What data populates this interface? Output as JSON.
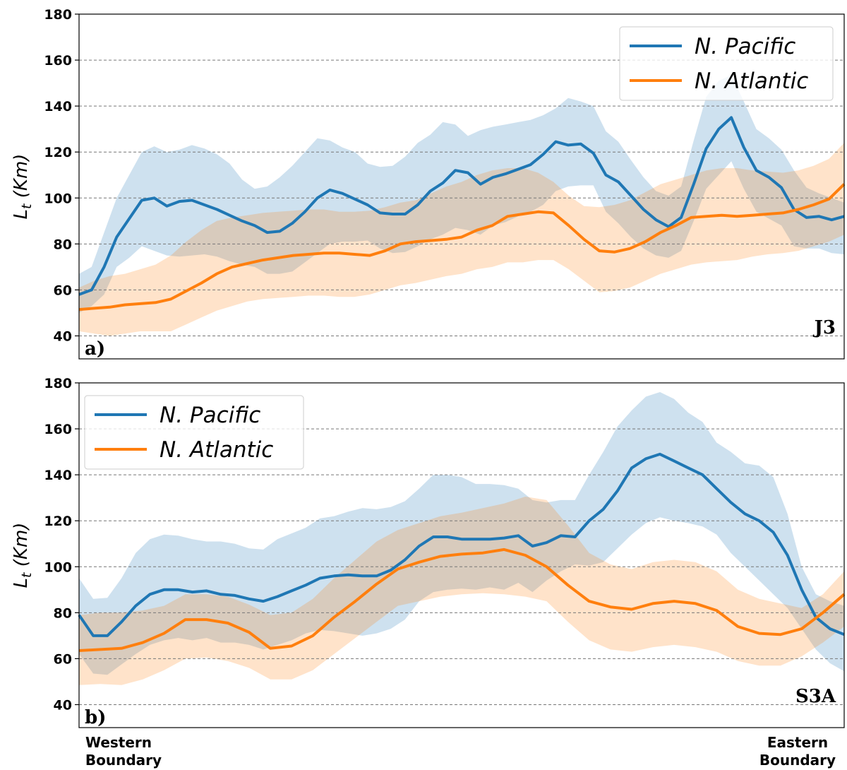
{
  "chart_data": [
    {
      "type": "line",
      "panel_label": "a)",
      "mission": "J3",
      "ylabel_main": "L",
      "ylabel_sub": "t",
      "ylabel_unit": " (Km)",
      "ylim": [
        30,
        180
      ],
      "yticks": [
        40,
        60,
        80,
        100,
        120,
        140,
        160,
        180
      ],
      "grid": "horizontal dashed",
      "legend_position": "top-right",
      "x_index_range": [
        0,
        47
      ],
      "series": [
        {
          "name": "N. Pacific",
          "color": "#1f77b4",
          "y": [
            58,
            60,
            70,
            83,
            91,
            99,
            100,
            96.5,
            98.5,
            99,
            97,
            95,
            92.5,
            90,
            88,
            85,
            85.5,
            89,
            94,
            100,
            103.5,
            102,
            99.5,
            97,
            93.5,
            93,
            93,
            97,
            103,
            106.5,
            112,
            111,
            106,
            109,
            110.5,
            112.5,
            114.5,
            119,
            124.5,
            123,
            123.5,
            119.5,
            110,
            107,
            101,
            95,
            90.5,
            87.5,
            91.5,
            106,
            121.5,
            130,
            135,
            122,
            112,
            109,
            104.5,
            95,
            91.5,
            92,
            90.5,
            92
          ],
          "upper": [
            67,
            70,
            85,
            100,
            110,
            120,
            122.5,
            120,
            121,
            123,
            121.5,
            119,
            115,
            108,
            104,
            105,
            109,
            114,
            120,
            126,
            125,
            122,
            120,
            115,
            113.5,
            114,
            118,
            124,
            127.5,
            133,
            132,
            127,
            129.5,
            131,
            132,
            133,
            134,
            136,
            139,
            143.5,
            142,
            140,
            129,
            124.5,
            116.5,
            109,
            103,
            101,
            105,
            125,
            144,
            151,
            153.5,
            142,
            130,
            126,
            121,
            112,
            104.5,
            102,
            100,
            98
          ],
          "lower": [
            50,
            53,
            58,
            70,
            74,
            79,
            77,
            75,
            74.5,
            75,
            75.5,
            74.5,
            72.5,
            71,
            70,
            67,
            67,
            68,
            72,
            76,
            80,
            81,
            81,
            81.5,
            78,
            76,
            76.5,
            79,
            82,
            84,
            87,
            86,
            84,
            88,
            89.5,
            92,
            94,
            97,
            103,
            105,
            105.5,
            105.5,
            94,
            89,
            83,
            78,
            75,
            74,
            77,
            90,
            104,
            110,
            116,
            104,
            94,
            91,
            88,
            79,
            78,
            78,
            76,
            75.5
          ]
        },
        {
          "name": "N. Atlantic",
          "color": "#ff7f0e",
          "y": [
            51.5,
            52,
            52.5,
            53.5,
            54,
            54.5,
            56,
            59.5,
            63,
            67,
            70,
            71.5,
            73,
            74,
            75,
            75.5,
            76,
            76,
            75.5,
            75,
            77,
            80,
            81,
            81.5,
            82,
            83,
            86,
            88,
            92,
            93,
            94,
            93.5,
            88,
            82,
            77,
            76.5,
            78,
            81,
            85,
            88,
            91.5,
            92,
            92.5,
            92,
            92.5,
            93,
            93.5,
            95,
            97,
            99.5,
            106
          ],
          "upper": [
            61,
            64,
            66,
            67,
            69,
            71,
            75,
            81,
            86,
            90,
            91.5,
            92.5,
            93.5,
            94,
            94.5,
            95,
            95,
            94,
            94,
            94.5,
            96,
            98,
            99,
            102,
            105,
            107,
            110,
            112,
            113,
            113,
            111,
            107,
            101,
            96.5,
            96,
            97,
            99,
            102.5,
            106,
            108,
            110,
            112,
            113,
            113,
            112,
            111.5,
            111,
            112,
            114,
            117,
            124
          ],
          "lower": [
            42,
            41,
            40,
            41,
            42,
            42,
            42,
            45,
            48,
            51,
            53,
            55,
            56,
            56.5,
            57,
            57.5,
            57.5,
            57,
            57,
            58,
            60,
            62,
            63,
            64.5,
            66,
            67,
            69,
            70,
            72,
            72,
            73,
            73,
            69,
            64,
            59,
            59.5,
            61,
            64,
            67,
            69,
            71,
            72,
            72.5,
            73,
            74.5,
            75.5,
            76,
            77,
            79,
            81,
            84
          ]
        }
      ]
    },
    {
      "type": "line",
      "panel_label": "b)",
      "mission": "S3A",
      "ylabel_main": "L",
      "ylabel_sub": "t",
      "ylabel_unit": " (Km)",
      "ylim": [
        30,
        180
      ],
      "yticks": [
        40,
        60,
        80,
        100,
        120,
        140,
        160,
        180
      ],
      "grid": "horizontal dashed",
      "legend_position": "top-left",
      "x_index_range": [
        0,
        47
      ],
      "series": [
        {
          "name": "N. Pacific",
          "color": "#1f77b4",
          "y": [
            79,
            70,
            70,
            76,
            83,
            88,
            90,
            90,
            89,
            89.5,
            88,
            87.5,
            86,
            85,
            87,
            89.5,
            92,
            95,
            96,
            96.5,
            96,
            96,
            98.5,
            103,
            109,
            113,
            113,
            112,
            112,
            112,
            112.5,
            113.5,
            109,
            110.5,
            113.5,
            113,
            120,
            125,
            133,
            143,
            147,
            149,
            146,
            143,
            140,
            134,
            128,
            123,
            120,
            115,
            105,
            90,
            78,
            73,
            70.5
          ],
          "upper": [
            95,
            86,
            86.5,
            95,
            106,
            112,
            114,
            113.5,
            112,
            111,
            111,
            110,
            108,
            107.5,
            112,
            114.5,
            117,
            121,
            122,
            124,
            125.5,
            125,
            126,
            128.5,
            134,
            140,
            140,
            139,
            136,
            136,
            135.5,
            134,
            129,
            128,
            129,
            129,
            140,
            150,
            161,
            168,
            174,
            176,
            173,
            167,
            163,
            154,
            150,
            145,
            144,
            139,
            123,
            100,
            88,
            85,
            83
          ],
          "lower": [
            62,
            53.5,
            53,
            57.5,
            62,
            66,
            68,
            69,
            68,
            69,
            67,
            67,
            66,
            64,
            66,
            68,
            71,
            72.5,
            72,
            71,
            70,
            71,
            73,
            77,
            85,
            89,
            90,
            90.5,
            90,
            91,
            90,
            93,
            89,
            94,
            98,
            101,
            100.5,
            102,
            108,
            114,
            119,
            121.5,
            120,
            119,
            117.5,
            114,
            106,
            100,
            94,
            88,
            82,
            73,
            64,
            58,
            54.5
          ]
        },
        {
          "name": "N. Atlantic",
          "color": "#ff7f0e",
          "y": [
            63.5,
            64,
            64.5,
            67,
            71,
            77,
            77,
            75.5,
            71.5,
            64.5,
            65.5,
            70,
            78,
            85,
            92.5,
            99,
            102,
            104.5,
            105.5,
            106,
            107.5,
            105,
            100,
            92,
            85,
            82.5,
            81.5,
            84,
            85,
            84,
            81,
            74,
            71,
            70.5,
            73,
            80,
            88
          ],
          "upper": [
            79,
            80,
            80,
            81,
            83,
            88,
            88,
            87,
            83.5,
            79,
            80,
            86,
            95,
            103,
            111,
            116,
            119,
            122,
            123.5,
            125.5,
            127.5,
            130.5,
            129,
            118,
            106,
            101,
            99,
            102,
            103,
            102,
            98,
            90,
            86,
            84,
            82,
            88,
            98
          ],
          "lower": [
            48.5,
            49,
            48.5,
            51,
            55,
            60,
            60.5,
            59,
            56,
            51,
            51,
            55,
            62,
            69,
            76,
            83,
            85,
            87,
            88,
            88.5,
            88,
            87,
            85,
            76,
            68,
            64,
            63,
            65,
            66,
            65,
            63,
            59,
            57,
            57,
            61,
            67,
            74
          ]
        }
      ]
    }
  ],
  "xcats": {
    "left_1": "Western",
    "left_2": "Boundary",
    "right_1": "Eastern",
    "right_2": "Boundary"
  }
}
